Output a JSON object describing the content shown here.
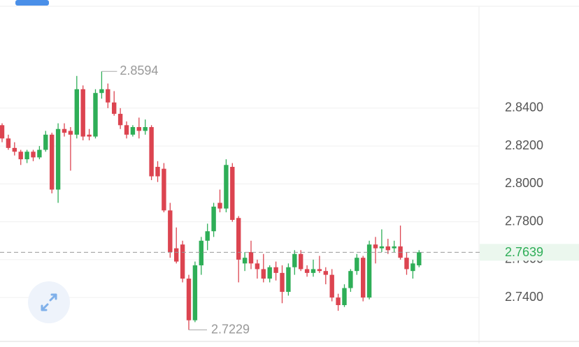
{
  "chart_data": {
    "type": "candlestick",
    "open": [
      2.831,
      2.824,
      2.819,
      2.817,
      2.813,
      2.817,
      2.814,
      2.818,
      2.826,
      2.797,
      2.829,
      2.828,
      2.826,
      2.85,
      2.826,
      2.825,
      2.848,
      2.85,
      2.843,
      2.837,
      2.831,
      2.826,
      2.83,
      2.828,
      2.83,
      2.809,
      2.808,
      2.786,
      2.766,
      2.768,
      2.75,
      2.728,
      2.757,
      2.77,
      2.775,
      2.79,
      2.787,
      2.809,
      2.782,
      2.758,
      2.764,
      2.758,
      2.755,
      2.75,
      2.756,
      2.753,
      2.743,
      2.756,
      2.763,
      2.755,
      2.753,
      2.755,
      2.754,
      2.752,
      2.74,
      2.736,
      2.745,
      2.754,
      2.761,
      2.74,
      2.768,
      2.766,
      2.767,
      2.766,
      2.767,
      2.761,
      2.754,
      2.757
    ],
    "high": [
      2.832,
      2.826,
      2.822,
      2.818,
      2.818,
      2.818,
      2.82,
      2.828,
      2.827,
      2.832,
      2.832,
      2.83,
      2.857,
      2.852,
      2.829,
      2.85,
      2.8594,
      2.853,
      2.849,
      2.84,
      2.833,
      2.831,
      2.835,
      2.834,
      2.831,
      2.812,
      2.811,
      2.79,
      2.777,
      2.77,
      2.752,
      2.759,
      2.772,
      2.779,
      2.79,
      2.797,
      2.813,
      2.811,
      2.783,
      2.764,
      2.77,
      2.76,
      2.763,
      2.757,
      2.759,
      2.757,
      2.758,
      2.765,
      2.765,
      2.757,
      2.76,
      2.762,
      2.756,
      2.755,
      2.742,
      2.747,
      2.755,
      2.763,
      2.762,
      2.77,
      2.772,
      2.776,
      2.771,
      2.77,
      2.778,
      2.764,
      2.76,
      2.765
    ],
    "low": [
      2.822,
      2.818,
      2.815,
      2.81,
      2.811,
      2.812,
      2.813,
      2.817,
      2.795,
      2.79,
      2.825,
      2.807,
      2.824,
      2.823,
      2.823,
      2.824,
      2.845,
      2.84,
      2.836,
      2.829,
      2.824,
      2.825,
      2.824,
      2.826,
      2.802,
      2.801,
      2.785,
      2.761,
      2.758,
      2.748,
      2.7229,
      2.727,
      2.752,
      2.765,
      2.772,
      2.785,
      2.785,
      2.78,
      2.748,
      2.754,
      2.755,
      2.75,
      2.748,
      2.748,
      2.749,
      2.737,
      2.741,
      2.752,
      2.754,
      2.751,
      2.751,
      2.753,
      2.747,
      2.738,
      2.733,
      2.735,
      2.743,
      2.752,
      2.738,
      2.739,
      2.758,
      2.764,
      2.763,
      2.764,
      2.76,
      2.752,
      2.75,
      2.756
    ],
    "close": [
      2.824,
      2.819,
      2.817,
      2.813,
      2.817,
      2.814,
      2.818,
      2.826,
      2.797,
      2.829,
      2.827,
      2.826,
      2.85,
      2.825,
      2.825,
      2.848,
      2.85,
      2.843,
      2.837,
      2.831,
      2.826,
      2.83,
      2.828,
      2.83,
      2.804,
      2.804,
      2.786,
      2.764,
      2.759,
      2.75,
      2.728,
      2.757,
      2.77,
      2.775,
      2.788,
      2.787,
      2.81,
      2.781,
      2.76,
      2.761,
      2.758,
      2.755,
      2.75,
      2.756,
      2.753,
      2.743,
      2.756,
      2.763,
      2.755,
      2.753,
      2.755,
      2.754,
      2.752,
      2.74,
      2.736,
      2.745,
      2.754,
      2.761,
      2.74,
      2.768,
      2.766,
      2.767,
      2.765,
      2.767,
      2.761,
      2.755,
      2.758,
      2.7639
    ],
    "up_color": "#2eae57",
    "down_color": "#dc4450",
    "ylim": [
      2.7172,
      2.8971
    ],
    "yticks": [
      {
        "value": 2.74,
        "label": "2.7400"
      },
      {
        "value": 2.76,
        "label": "2.7600"
      },
      {
        "value": 2.78,
        "label": "2.7800"
      },
      {
        "value": 2.8,
        "label": "2.8000"
      },
      {
        "value": 2.82,
        "label": "2.8200"
      },
      {
        "value": 2.84,
        "label": "2.8400"
      }
    ],
    "grid": true,
    "max_price": 2.8594,
    "min_price": 2.7229,
    "last_price": 2.7639
  }
}
